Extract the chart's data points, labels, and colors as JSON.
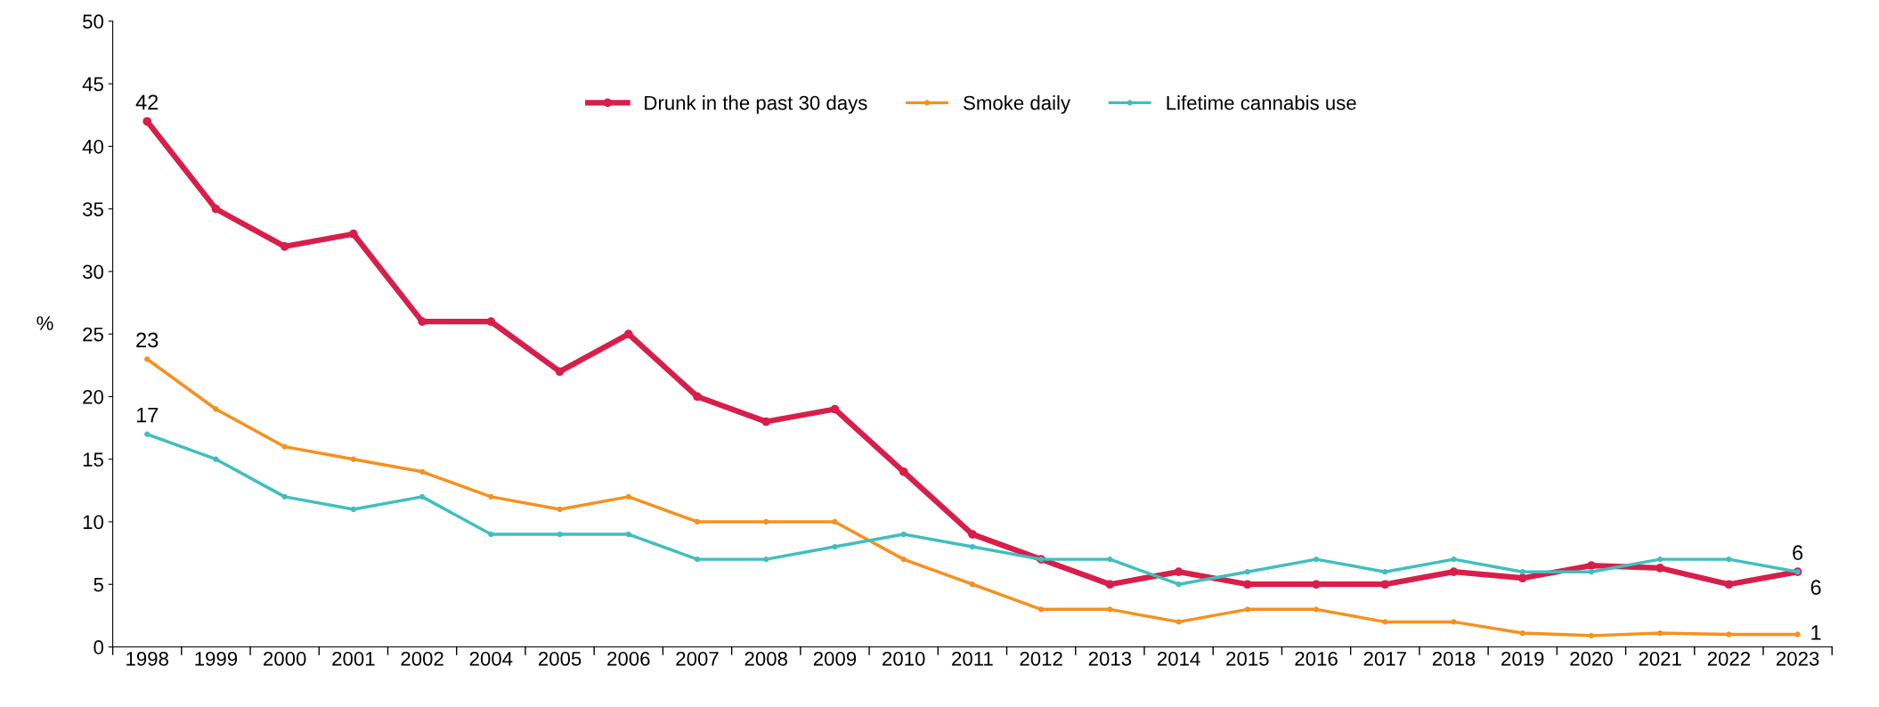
{
  "chart_data": {
    "type": "line",
    "ylabel": "%",
    "categories": [
      "1998",
      "1999",
      "2000",
      "2001",
      "2002",
      "2004",
      "2005",
      "2006",
      "2007",
      "2008",
      "2009",
      "2010",
      "2011",
      "2012",
      "2013",
      "2014",
      "2015",
      "2016",
      "2017",
      "2018",
      "2019",
      "2020",
      "2021",
      "2022",
      "2023"
    ],
    "series": [
      {
        "name": "Drunk in the past 30 days",
        "color": "#d81e4a",
        "values": [
          42,
          35,
          32,
          33,
          26,
          26,
          22,
          25,
          20,
          18,
          19,
          14,
          9,
          7,
          5,
          6,
          5,
          5,
          5,
          6,
          5.5,
          6.5,
          6.3,
          5,
          6
        ],
        "value_labels": [
          "42",
          null,
          null,
          null,
          null,
          null,
          null,
          null,
          null,
          null,
          null,
          null,
          null,
          null,
          null,
          null,
          null,
          null,
          null,
          null,
          null,
          null,
          null,
          null,
          "6"
        ]
      },
      {
        "name": "Smoke daily",
        "color": "#f7901e",
        "values": [
          23,
          19,
          16,
          15,
          14,
          12,
          11,
          12,
          10,
          10,
          10,
          7,
          5,
          3,
          3,
          2,
          3,
          3,
          2,
          2,
          1.1,
          0.9,
          1.1,
          1,
          1
        ],
        "value_labels": [
          "23",
          null,
          null,
          null,
          null,
          null,
          null,
          null,
          null,
          null,
          null,
          null,
          null,
          null,
          null,
          null,
          null,
          null,
          null,
          null,
          null,
          null,
          null,
          null,
          "1"
        ]
      },
      {
        "name": "Lifetime cannabis use",
        "color": "#3fbfbf",
        "values": [
          17,
          15,
          12,
          11,
          12,
          9,
          9,
          9,
          7,
          7,
          8,
          9,
          8,
          7,
          7,
          5,
          6,
          7,
          6,
          7,
          6,
          6,
          7,
          7,
          6
        ],
        "value_labels": [
          "17",
          null,
          null,
          null,
          null,
          null,
          null,
          null,
          null,
          null,
          null,
          null,
          null,
          null,
          null,
          null,
          null,
          null,
          null,
          null,
          null,
          null,
          null,
          null,
          "6"
        ]
      }
    ],
    "ylim": [
      0,
      50
    ],
    "yticks": [
      0,
      5,
      10,
      15,
      20,
      25,
      30,
      35,
      40,
      45,
      50
    ],
    "grid": false,
    "legend": "top",
    "marker": "circle",
    "line_style": "solid"
  }
}
